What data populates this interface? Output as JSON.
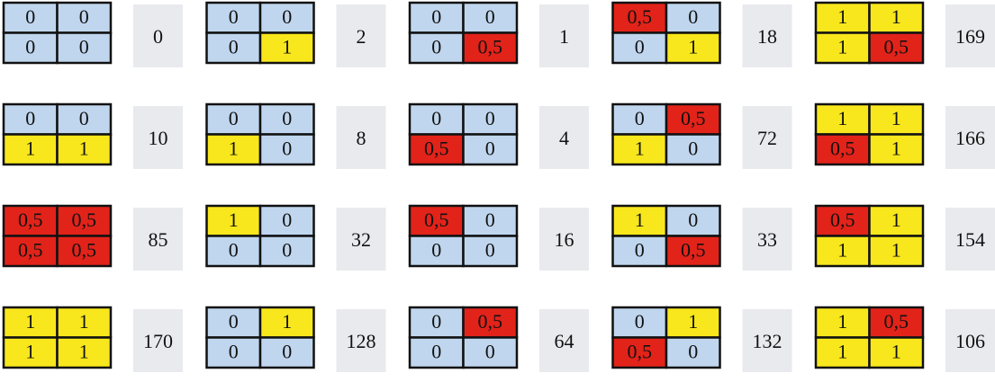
{
  "cell_colors": {
    "0": "#c0d6ee",
    "1": "#f8e71c",
    "0,5": "#e2231a"
  },
  "rows": [
    [
      {
        "cells": [
          [
            "0",
            "0"
          ],
          [
            "0",
            "0"
          ]
        ],
        "code": 0
      },
      {
        "cells": [
          [
            "0",
            "0"
          ],
          [
            "0",
            "1"
          ]
        ],
        "code": 2
      },
      {
        "cells": [
          [
            "0",
            "0"
          ],
          [
            "0",
            "0,5"
          ]
        ],
        "code": 1
      },
      {
        "cells": [
          [
            "0,5",
            "0"
          ],
          [
            "0",
            "1"
          ]
        ],
        "code": 18
      },
      {
        "cells": [
          [
            "1",
            "1"
          ],
          [
            "1",
            "0,5"
          ]
        ],
        "code": 169
      }
    ],
    [
      {
        "cells": [
          [
            "0",
            "0"
          ],
          [
            "1",
            "1"
          ]
        ],
        "code": 10
      },
      {
        "cells": [
          [
            "0",
            "0"
          ],
          [
            "1",
            "0"
          ]
        ],
        "code": 8
      },
      {
        "cells": [
          [
            "0",
            "0"
          ],
          [
            "0,5",
            "0"
          ]
        ],
        "code": 4
      },
      {
        "cells": [
          [
            "0",
            "0,5"
          ],
          [
            "1",
            "0"
          ]
        ],
        "code": 72
      },
      {
        "cells": [
          [
            "1",
            "1"
          ],
          [
            "0,5",
            "1"
          ]
        ],
        "code": 166
      }
    ],
    [
      {
        "cells": [
          [
            "0,5",
            "0,5"
          ],
          [
            "0,5",
            "0,5"
          ]
        ],
        "code": 85
      },
      {
        "cells": [
          [
            "1",
            "0"
          ],
          [
            "0",
            "0"
          ]
        ],
        "code": 32
      },
      {
        "cells": [
          [
            "0,5",
            "0"
          ],
          [
            "0",
            "0"
          ]
        ],
        "code": 16
      },
      {
        "cells": [
          [
            "1",
            "0"
          ],
          [
            "0",
            "0,5"
          ]
        ],
        "code": 33
      },
      {
        "cells": [
          [
            "0,5",
            "1"
          ],
          [
            "1",
            "1"
          ]
        ],
        "code": 154
      }
    ],
    [
      {
        "cells": [
          [
            "1",
            "1"
          ],
          [
            "1",
            "1"
          ]
        ],
        "code": 170
      },
      {
        "cells": [
          [
            "0",
            "1"
          ],
          [
            "0",
            "0"
          ]
        ],
        "code": 128
      },
      {
        "cells": [
          [
            "0",
            "0,5"
          ],
          [
            "0",
            "0"
          ]
        ],
        "code": 64
      },
      {
        "cells": [
          [
            "0",
            "1"
          ],
          [
            "0,5",
            "0"
          ]
        ],
        "code": 132
      },
      {
        "cells": [
          [
            "1",
            "0,5"
          ],
          [
            "1",
            "1"
          ]
        ],
        "code": 106
      }
    ]
  ]
}
